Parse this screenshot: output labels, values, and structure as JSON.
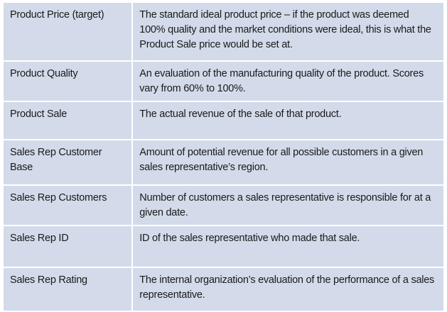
{
  "glossary": {
    "rows": [
      {
        "term": "Product Price (target)",
        "definition": "The standard ideal product price – if the product was deemed 100% quality and the market conditions were ideal, this is what the Product Sale price would be set at."
      },
      {
        "term": "Product Quality",
        "definition": "An evaluation of the manufacturing quality of the product.  Scores vary from 60% to 100%."
      },
      {
        "term": "Product Sale",
        "definition": "The actual revenue of the sale of that product."
      },
      {
        "term": "Sales Rep Customer Base",
        "definition": "Amount of potential revenue for all possible customers in a given sales representative’s region."
      },
      {
        "term": "Sales Rep Customers",
        "definition": "Number of customers a sales representative is responsible for at a given date."
      },
      {
        "term": "Sales Rep ID",
        "definition": "ID of the sales representative who made that sale."
      },
      {
        "term": "Sales Rep Rating",
        "definition": "The internal organization’s evaluation of the performance of a sales representative."
      }
    ]
  }
}
